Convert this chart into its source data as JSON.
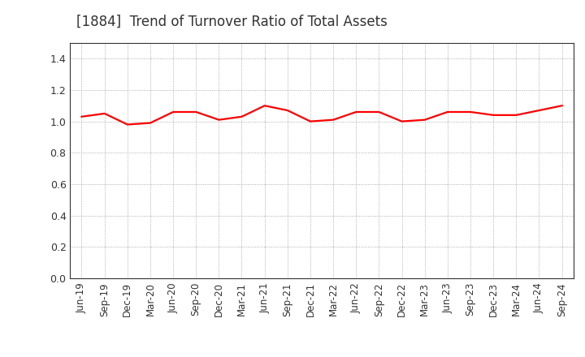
{
  "title": "[1884]  Trend of Turnover Ratio of Total Assets",
  "title_fontsize": 12,
  "title_color": "#333333",
  "line_color": "#FF0000",
  "line_width": 1.6,
  "background_color": "#FFFFFF",
  "grid_color": "#999999",
  "ylim": [
    0.0,
    1.5
  ],
  "yticks": [
    0.0,
    0.2,
    0.4,
    0.6,
    0.8,
    1.0,
    1.2,
    1.4
  ],
  "labels": [
    "Jun-19",
    "Sep-19",
    "Dec-19",
    "Mar-20",
    "Jun-20",
    "Sep-20",
    "Dec-20",
    "Mar-21",
    "Jun-21",
    "Sep-21",
    "Dec-21",
    "Mar-22",
    "Jun-22",
    "Sep-22",
    "Dec-22",
    "Mar-23",
    "Jun-23",
    "Sep-23",
    "Dec-23",
    "Mar-24",
    "Jun-24",
    "Sep-24"
  ],
  "values": [
    1.03,
    1.05,
    0.98,
    0.99,
    1.06,
    1.06,
    1.01,
    1.03,
    1.1,
    1.07,
    1.0,
    1.01,
    1.06,
    1.06,
    1.0,
    1.01,
    1.06,
    1.06,
    1.04,
    1.04,
    1.07,
    1.1
  ]
}
